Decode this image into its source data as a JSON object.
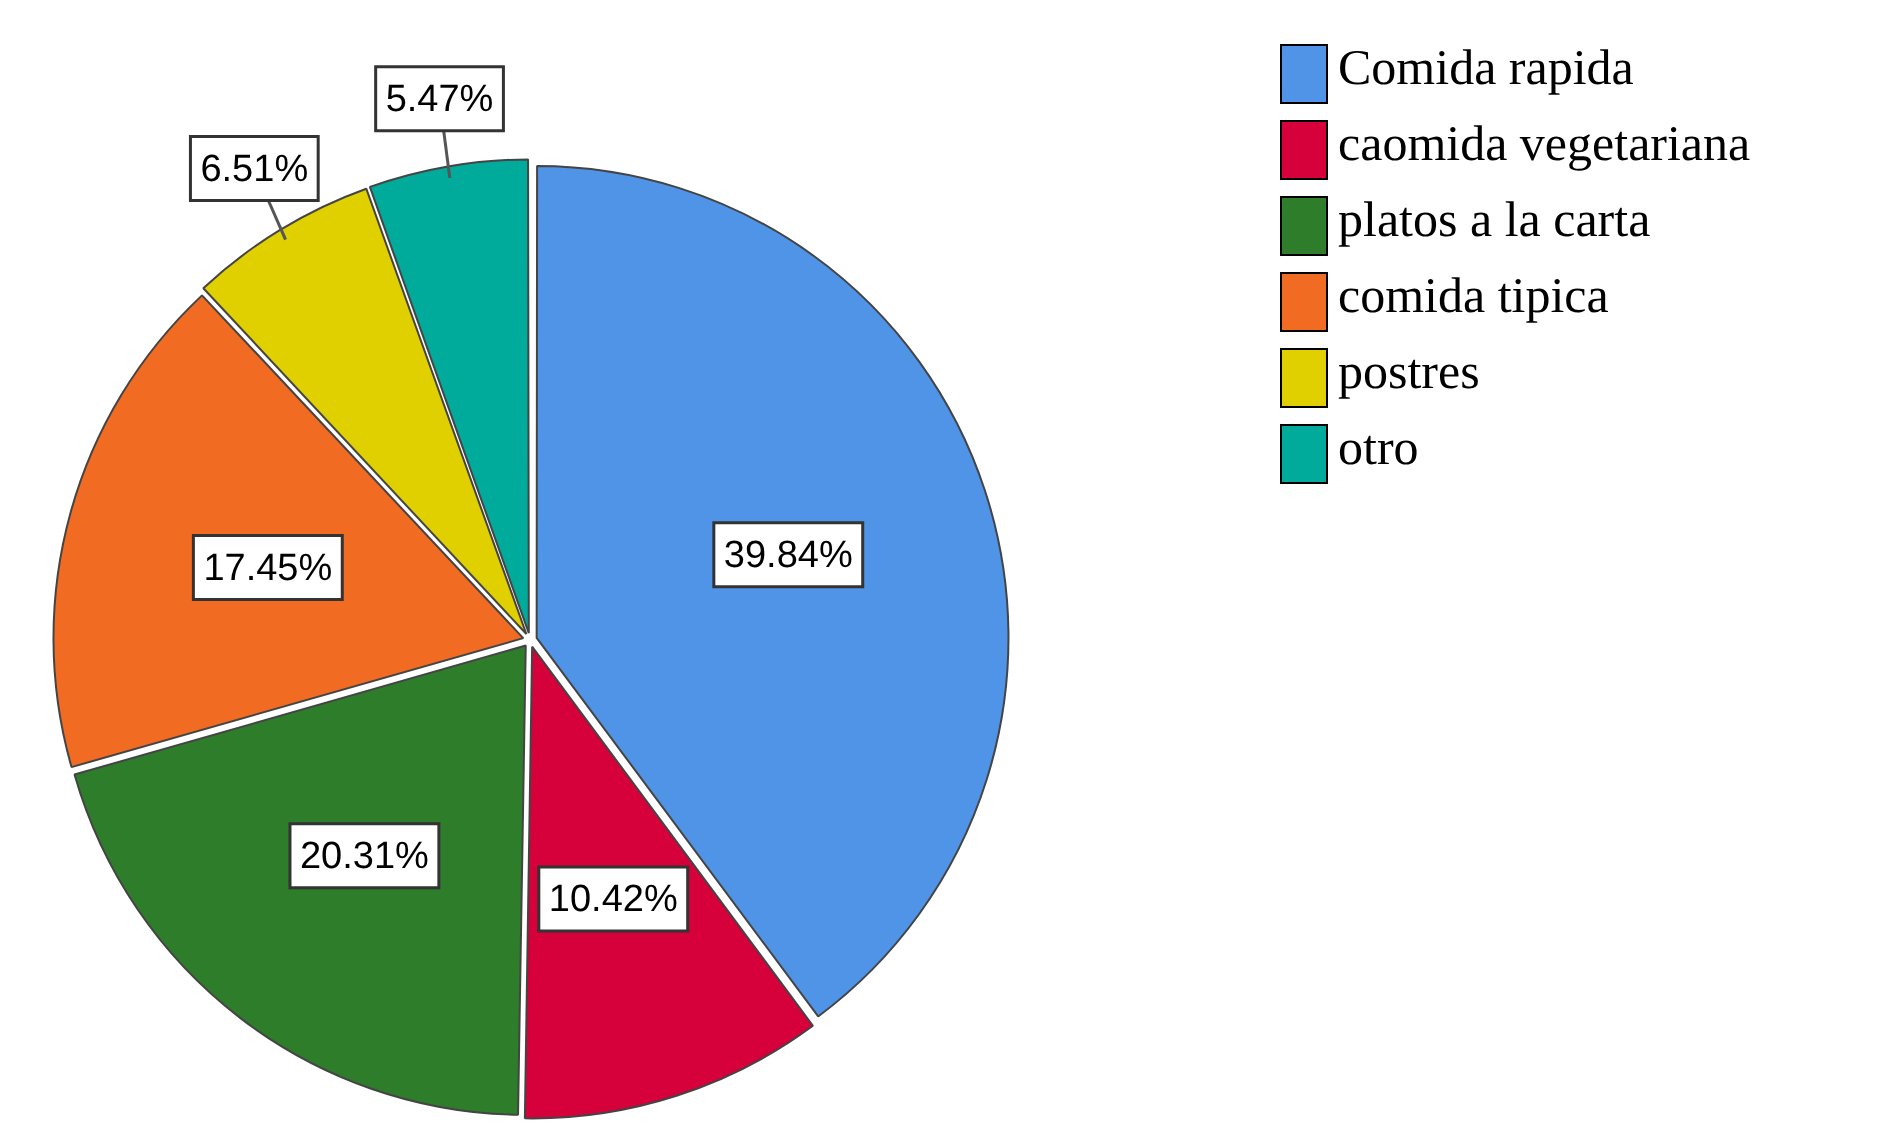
{
  "chart_data": {
    "type": "pie",
    "categories": [
      "Comida rapida",
      "caomida vegetariana",
      "platos a la carta",
      "comida tipica",
      "postres",
      "otro"
    ],
    "values": [
      39.84,
      10.42,
      20.31,
      17.45,
      6.51,
      5.47
    ],
    "colors": [
      "#4f94e6",
      "#d6003a",
      "#2e7d2b",
      "#f26b22",
      "#e0d000",
      "#00ab9c"
    ],
    "value_labels": [
      "39.84%",
      "10.42%",
      "20.31%",
      "17.45%",
      "6.51%",
      "5.47%"
    ],
    "legend": "right"
  }
}
